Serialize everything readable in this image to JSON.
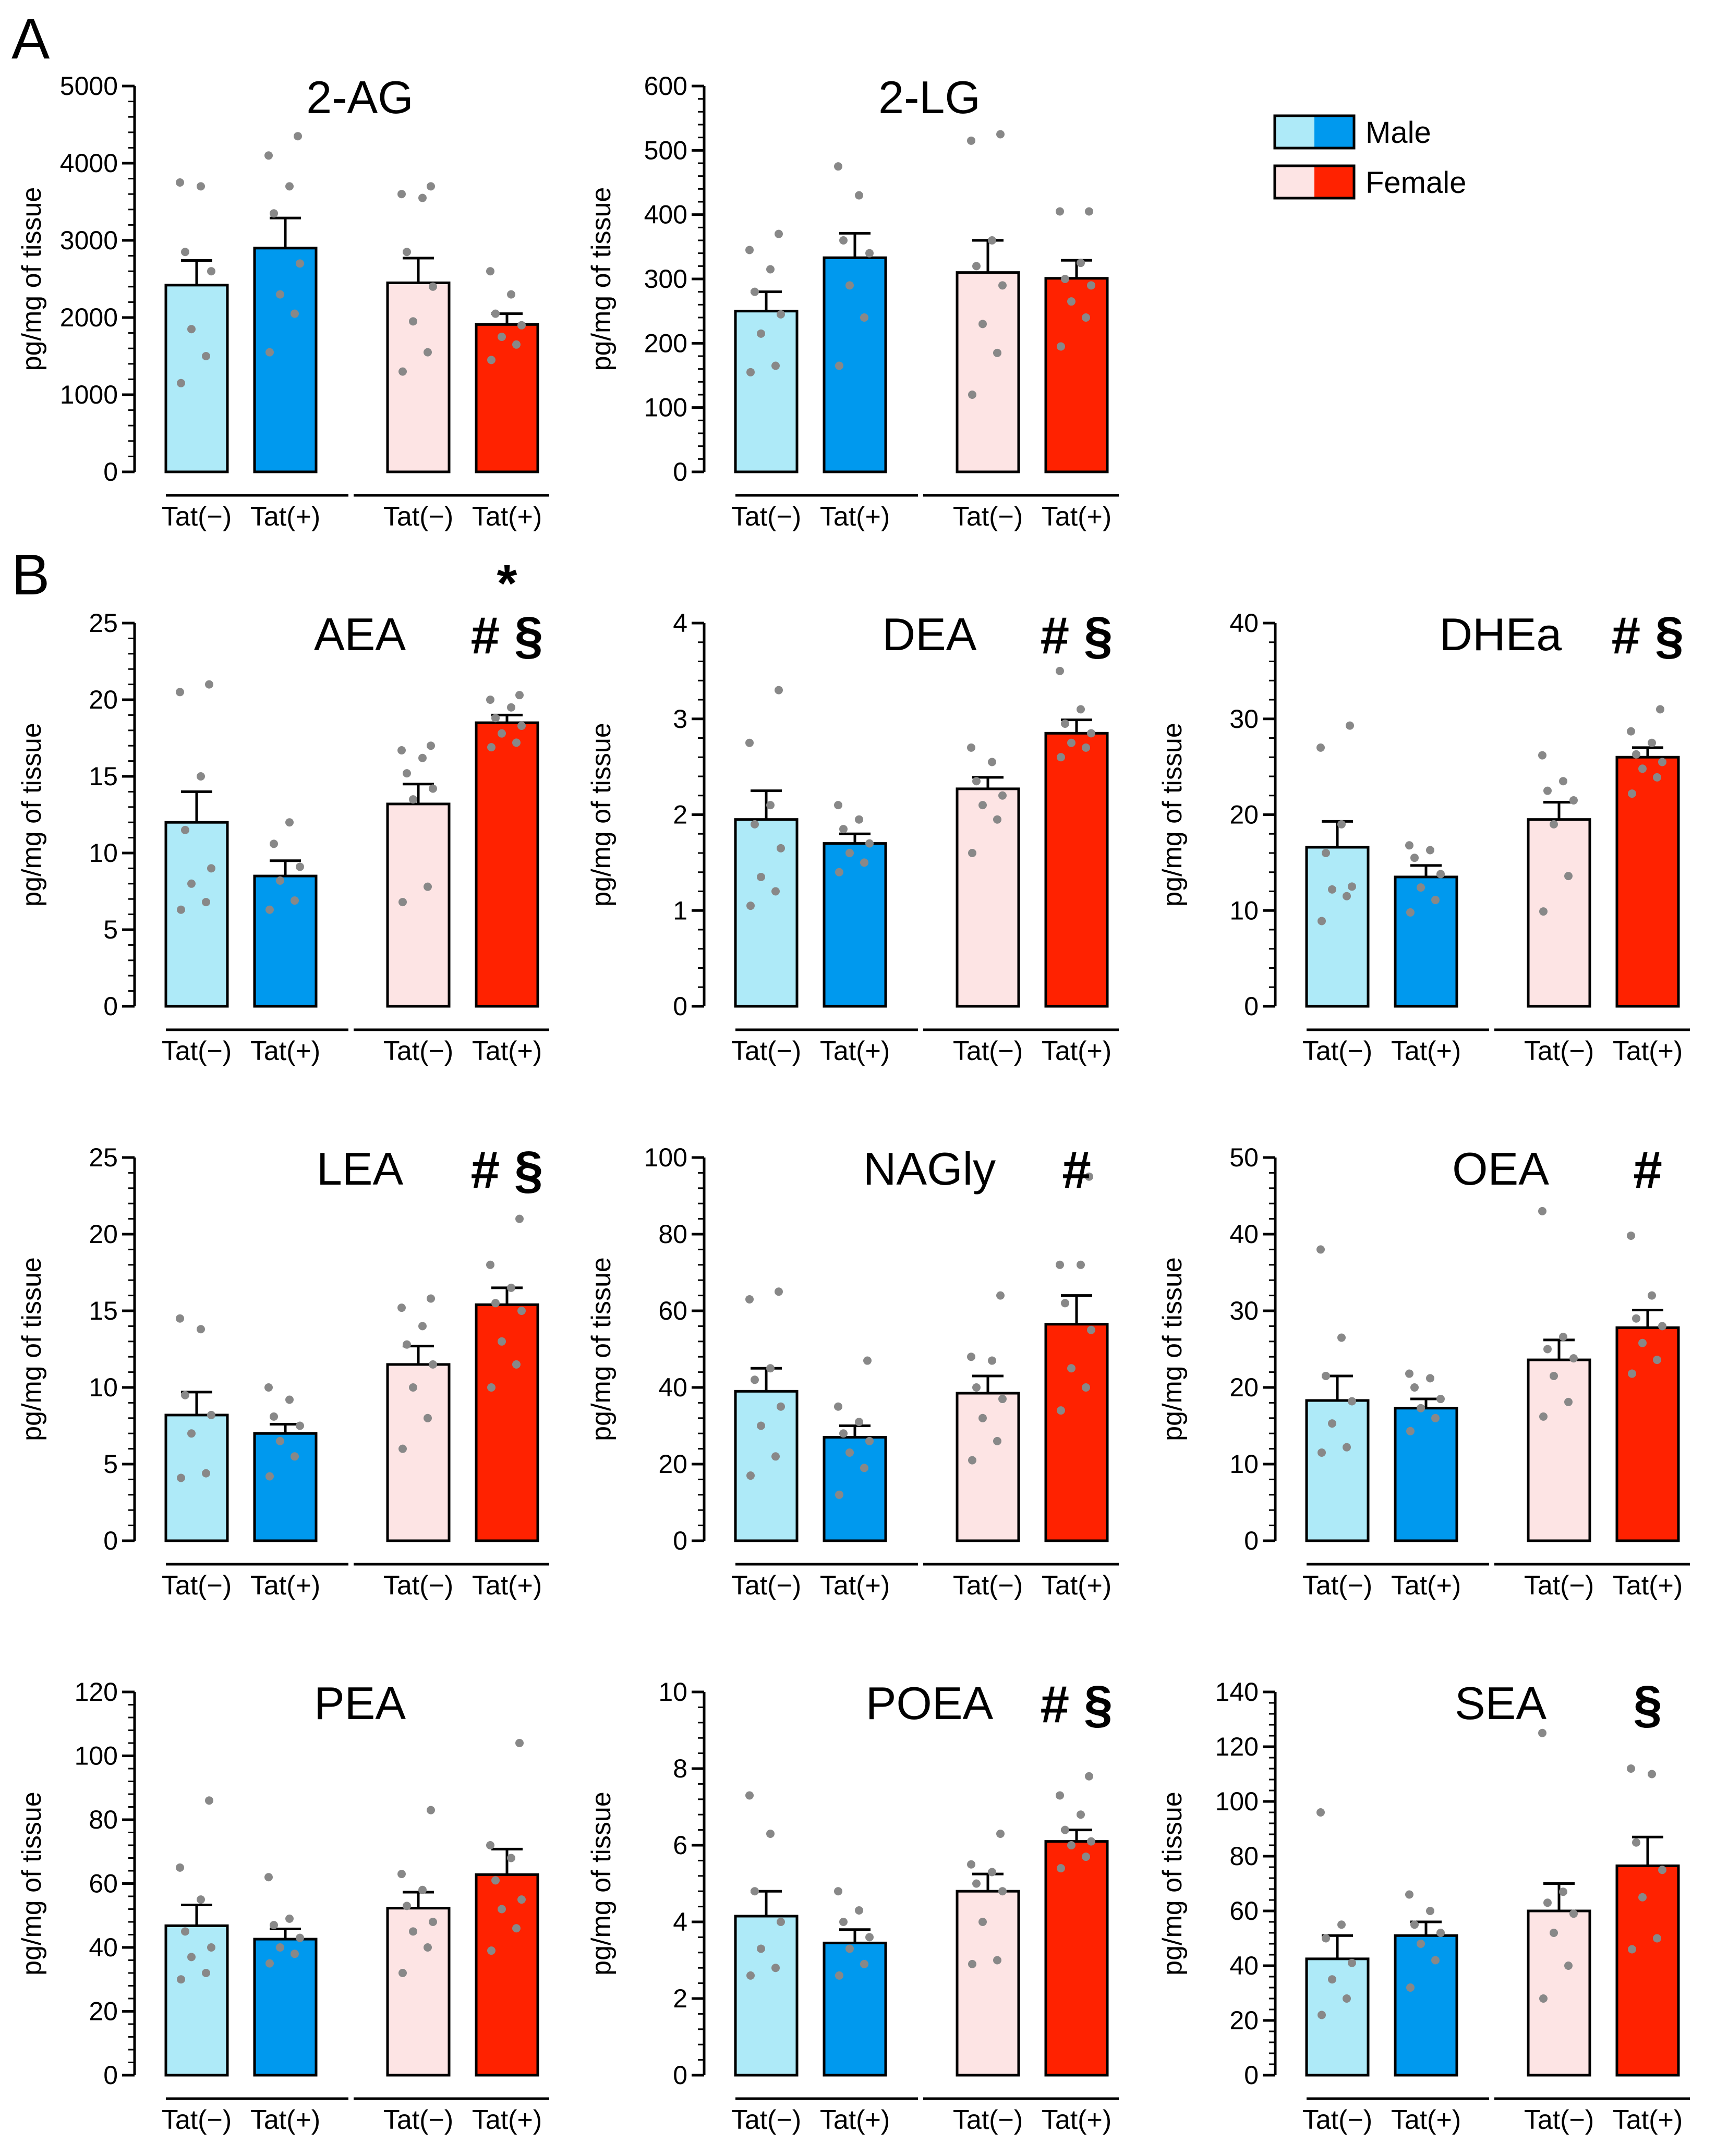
{
  "figure": {
    "panel_labels": [
      "A",
      "B"
    ],
    "y_axis_label": "pg/mg of tissue",
    "group_labels": [
      "Tat(−)",
      "Tat(+)",
      "Tat(−)",
      "Tat(+)"
    ]
  },
  "legend": {
    "male": "Male",
    "female": "Female",
    "colors": {
      "male_light": "#aeeaf8",
      "male_dark": "#0099ee",
      "female_light": "#fde4e4",
      "female_dark": "#ff2200"
    }
  },
  "colors": {
    "dot": "#888888",
    "axis": "#000000"
  },
  "chart_data": [
    {
      "type": "bar",
      "title": "2-AG",
      "ylim": [
        0,
        5000
      ],
      "yticks": [
        0,
        1000,
        2000,
        3000,
        4000,
        5000
      ],
      "categories": [
        "Male Tat(−)",
        "Male Tat(+)",
        "Female Tat(−)",
        "Female Tat(+)"
      ],
      "values": [
        2420,
        2900,
        2450,
        1910
      ],
      "sem": [
        320,
        390,
        320,
        140
      ],
      "points": [
        [
          1150,
          1500,
          1850,
          2600,
          2850,
          3700,
          3750
        ],
        [
          1550,
          2050,
          2300,
          2700,
          3350,
          3700,
          4100,
          4350
        ],
        [
          1300,
          1550,
          1950,
          2400,
          2850,
          3550,
          3600,
          3700
        ],
        [
          1450,
          1650,
          1750,
          1900,
          2050,
          2300,
          2600
        ]
      ],
      "significance": ""
    },
    {
      "type": "bar",
      "title": "2-LG",
      "ylim": [
        0,
        600
      ],
      "yticks": [
        0,
        100,
        200,
        300,
        400,
        500,
        600
      ],
      "categories": [
        "Male Tat(−)",
        "Male Tat(+)",
        "Female Tat(−)",
        "Female Tat(+)"
      ],
      "values": [
        250,
        333,
        310,
        301
      ],
      "sem": [
        30,
        38,
        50,
        28
      ],
      "points": [
        [
          155,
          165,
          215,
          245,
          280,
          315,
          345,
          370
        ],
        [
          165,
          240,
          290,
          340,
          360,
          430,
          475
        ],
        [
          120,
          185,
          230,
          290,
          320,
          360,
          515,
          525
        ],
        [
          195,
          240,
          265,
          290,
          300,
          325,
          405,
          405
        ]
      ],
      "significance": ""
    },
    {
      "type": "bar",
      "title": "AEA",
      "ylim": [
        0,
        25
      ],
      "yticks": [
        0,
        5,
        10,
        15,
        20,
        25
      ],
      "categories": [
        "Male Tat(−)",
        "Male Tat(+)",
        "Female Tat(−)",
        "Female Tat(+)"
      ],
      "values": [
        12.0,
        8.5,
        13.2,
        18.5
      ],
      "sem": [
        2.0,
        1.0,
        1.3,
        0.5
      ],
      "points": [
        [
          6.3,
          6.8,
          8.0,
          9.0,
          11.5,
          15.0,
          20.5,
          21.0
        ],
        [
          6.3,
          6.9,
          8.2,
          9.1,
          10.6,
          12.0
        ],
        [
          6.8,
          7.8,
          13.5,
          14.2,
          15.2,
          16.2,
          16.7,
          17.0
        ],
        [
          16.9,
          17.2,
          17.8,
          18.3,
          18.8,
          19.5,
          20.0,
          20.3
        ]
      ],
      "significance": "*\n# §"
    },
    {
      "type": "bar",
      "title": "DEA",
      "ylim": [
        0,
        4
      ],
      "yticks": [
        0,
        1,
        2,
        3,
        4
      ],
      "categories": [
        "Male Tat(−)",
        "Male Tat(+)",
        "Female Tat(−)",
        "Female Tat(+)"
      ],
      "values": [
        1.95,
        1.7,
        2.27,
        2.85
      ],
      "sem": [
        0.3,
        0.1,
        0.12,
        0.14
      ],
      "points": [
        [
          1.05,
          1.2,
          1.35,
          1.65,
          1.9,
          2.1,
          2.75,
          3.3
        ],
        [
          1.4,
          1.5,
          1.6,
          1.7,
          1.85,
          1.95,
          2.1
        ],
        [
          1.6,
          1.95,
          2.1,
          2.2,
          2.35,
          2.55,
          2.7
        ],
        [
          2.6,
          2.7,
          2.75,
          2.85,
          2.95,
          3.1,
          3.5
        ]
      ],
      "significance": "# §"
    },
    {
      "type": "bar",
      "title": "DHEa",
      "ylim": [
        0,
        40
      ],
      "yticks": [
        0,
        10,
        20,
        30,
        40
      ],
      "categories": [
        "Male Tat(−)",
        "Male Tat(+)",
        "Female Tat(−)",
        "Female Tat(+)"
      ],
      "values": [
        16.6,
        13.5,
        19.5,
        26.0
      ],
      "sem": [
        2.7,
        1.2,
        1.8,
        1.0
      ],
      "points": [
        [
          8.9,
          11.5,
          12.2,
          12.5,
          16.0,
          19.0,
          27.0,
          29.3
        ],
        [
          9.8,
          11.1,
          12.4,
          13.8,
          15.5,
          16.3,
          16.8
        ],
        [
          9.9,
          13.6,
          19.0,
          21.5,
          22.5,
          23.5,
          26.2
        ],
        [
          22.2,
          23.9,
          24.8,
          25.5,
          26.3,
          27.5,
          28.7,
          31.0
        ]
      ],
      "significance": "# §"
    },
    {
      "type": "bar",
      "title": "LEA",
      "ylim": [
        0,
        25
      ],
      "yticks": [
        0,
        5,
        10,
        15,
        20,
        25
      ],
      "categories": [
        "Male Tat(−)",
        "Male Tat(+)",
        "Female Tat(−)",
        "Female Tat(+)"
      ],
      "values": [
        8.2,
        7.0,
        11.5,
        15.4
      ],
      "sem": [
        1.5,
        0.6,
        1.2,
        1.1
      ],
      "points": [
        [
          4.1,
          4.4,
          7.0,
          8.2,
          9.5,
          13.8,
          14.5
        ],
        [
          4.2,
          5.5,
          6.5,
          7.5,
          8.1,
          9.2,
          10.0
        ],
        [
          6.0,
          8.0,
          10.0,
          11.5,
          12.8,
          14.0,
          15.2,
          15.8
        ],
        [
          10.0,
          11.5,
          13.0,
          15.0,
          15.5,
          16.5,
          18.0,
          21.0
        ]
      ],
      "significance": "# §"
    },
    {
      "type": "bar",
      "title": "NAGly",
      "ylim": [
        0,
        100
      ],
      "yticks": [
        0,
        20,
        40,
        60,
        80,
        100
      ],
      "categories": [
        "Male Tat(−)",
        "Male Tat(+)",
        "Female Tat(−)",
        "Female Tat(+)"
      ],
      "values": [
        39.0,
        27.0,
        38.5,
        56.5
      ],
      "sem": [
        6.0,
        3.0,
        4.5,
        7.5
      ],
      "points": [
        [
          17,
          22,
          30,
          35,
          42,
          45,
          63,
          65
        ],
        [
          12,
          19,
          23,
          26,
          28,
          31,
          35,
          47
        ],
        [
          21,
          26,
          32,
          37,
          40,
          47,
          48,
          64
        ],
        [
          34,
          40,
          45,
          55,
          62,
          72,
          72,
          95
        ]
      ],
      "significance": "#"
    },
    {
      "type": "bar",
      "title": "OEA",
      "ylim": [
        0,
        50
      ],
      "yticks": [
        0,
        10,
        20,
        30,
        40,
        50
      ],
      "categories": [
        "Male Tat(−)",
        "Male Tat(+)",
        "Female Tat(−)",
        "Female Tat(+)"
      ],
      "values": [
        18.3,
        17.3,
        23.6,
        27.8
      ],
      "sem": [
        3.2,
        1.2,
        2.6,
        2.3
      ],
      "points": [
        [
          11.5,
          12.2,
          15.3,
          18.2,
          21.5,
          26.5,
          38.0
        ],
        [
          14.3,
          16.0,
          17.3,
          18.5,
          20.0,
          21.2,
          21.8
        ],
        [
          16.2,
          18.1,
          21.5,
          23.8,
          25.0,
          26.6,
          43.0
        ],
        [
          21.8,
          23.6,
          25.8,
          28.0,
          29.0,
          32.0,
          39.8
        ]
      ],
      "significance": "#"
    },
    {
      "type": "bar",
      "title": "PEA",
      "ylim": [
        0,
        120
      ],
      "yticks": [
        0,
        20,
        40,
        60,
        80,
        100,
        120
      ],
      "categories": [
        "Male Tat(−)",
        "Male Tat(+)",
        "Female Tat(−)",
        "Female Tat(+)"
      ],
      "values": [
        46.8,
        42.6,
        52.3,
        62.8
      ],
      "sem": [
        6.5,
        3.2,
        5.0,
        8.0
      ],
      "points": [
        [
          30,
          32,
          37,
          40,
          45,
          55,
          65,
          86
        ],
        [
          35,
          38,
          40,
          43,
          47,
          49,
          62
        ],
        [
          32,
          40,
          45,
          48,
          53,
          58,
          63,
          83
        ],
        [
          39,
          46,
          52,
          55,
          61,
          68,
          72,
          104
        ]
      ],
      "significance": ""
    },
    {
      "type": "bar",
      "title": "POEA",
      "ylim": [
        0,
        10
      ],
      "yticks": [
        0,
        2,
        4,
        6,
        8,
        10
      ],
      "categories": [
        "Male Tat(−)",
        "Male Tat(+)",
        "Female Tat(−)",
        "Female Tat(+)"
      ],
      "values": [
        4.15,
        3.45,
        4.8,
        6.1
      ],
      "sem": [
        0.65,
        0.35,
        0.45,
        0.3
      ],
      "points": [
        [
          2.6,
          2.8,
          3.3,
          4.0,
          4.8,
          6.3,
          7.3
        ],
        [
          2.6,
          2.9,
          3.3,
          3.6,
          4.0,
          4.3,
          4.8
        ],
        [
          2.9,
          3.0,
          4.0,
          4.8,
          5.0,
          5.3,
          5.5,
          6.3
        ],
        [
          5.4,
          5.7,
          6.0,
          6.1,
          6.4,
          6.8,
          7.3,
          7.8
        ]
      ],
      "significance": "# §"
    },
    {
      "type": "bar",
      "title": "SEA",
      "ylim": [
        0,
        140
      ],
      "yticks": [
        0,
        20,
        40,
        60,
        80,
        100,
        120,
        140
      ],
      "categories": [
        "Male Tat(−)",
        "Male Tat(+)",
        "Female Tat(−)",
        "Female Tat(+)"
      ],
      "values": [
        42.5,
        51.0,
        60.0,
        76.5
      ],
      "sem": [
        8.5,
        5.0,
        10.0,
        10.5
      ],
      "points": [
        [
          22,
          28,
          35,
          41,
          50,
          55,
          96
        ],
        [
          32,
          42,
          48,
          52,
          55,
          60,
          66
        ],
        [
          28,
          40,
          52,
          59,
          63,
          67,
          125
        ],
        [
          46,
          50,
          65,
          75,
          85,
          110,
          112
        ]
      ],
      "significance": "§"
    }
  ]
}
